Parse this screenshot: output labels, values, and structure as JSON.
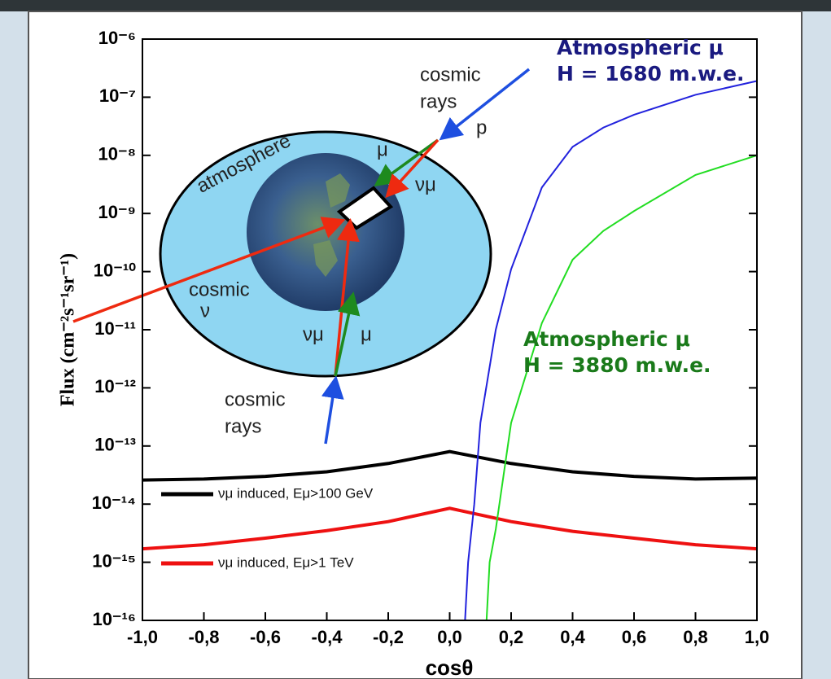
{
  "chart_data": {
    "type": "line",
    "xlabel": "cosθ",
    "ylabel": "Flux (cm⁻²s⁻¹sr⁻¹)",
    "xlim": [
      -1,
      1
    ],
    "ylim": [
      1e-16,
      1e-06
    ],
    "log_y": true,
    "xticks": [
      {
        "value": -1,
        "label": "-1,0"
      },
      {
        "value": -0.8,
        "label": "-0,8"
      },
      {
        "value": -0.6,
        "label": "-0,6"
      },
      {
        "value": -0.4,
        "label": "-0,4"
      },
      {
        "value": -0.2,
        "label": "-0,2"
      },
      {
        "value": 0,
        "label": "0,0"
      },
      {
        "value": 0.2,
        "label": "0,2"
      },
      {
        "value": 0.4,
        "label": "0,4"
      },
      {
        "value": 0.6,
        "label": "0,6"
      },
      {
        "value": 0.8,
        "label": "0,8"
      },
      {
        "value": 1,
        "label": "1,0"
      }
    ],
    "yticks": [
      {
        "value": 1e-06,
        "label": "10⁻⁶"
      },
      {
        "value": 1e-07,
        "label": "10⁻⁷"
      },
      {
        "value": 1e-08,
        "label": "10⁻⁸"
      },
      {
        "value": 1e-09,
        "label": "10⁻⁹"
      },
      {
        "value": 1e-10,
        "label": "10⁻¹⁰"
      },
      {
        "value": 1e-11,
        "label": "10⁻¹¹"
      },
      {
        "value": 1e-12,
        "label": "10⁻¹²"
      },
      {
        "value": 1e-13,
        "label": "10⁻¹³"
      },
      {
        "value": 1e-14,
        "label": "10⁻¹⁴"
      },
      {
        "value": 1e-15,
        "label": "10⁻¹⁵"
      },
      {
        "value": 1e-16,
        "label": "10⁻¹⁶"
      }
    ],
    "series": [
      {
        "name": "νμ induced, Eμ>100 GeV",
        "color": "#000000",
        "x": [
          -1,
          -0.8,
          -0.6,
          -0.4,
          -0.2,
          0,
          0.2,
          0.4,
          0.6,
          0.8,
          1
        ],
        "values": [
          2.6e-14,
          2.7e-14,
          3e-14,
          3.6e-14,
          5e-14,
          8e-14,
          5e-14,
          3.6e-14,
          3e-14,
          2.7e-14,
          2.8e-14
        ]
      },
      {
        "name": "νμ induced, Eμ>1 TeV",
        "color": "#ee1111",
        "x": [
          -1,
          -0.8,
          -0.6,
          -0.4,
          -0.2,
          0,
          0.2,
          0.4,
          0.6,
          0.8,
          1
        ],
        "values": [
          1.7e-15,
          2e-15,
          2.6e-15,
          3.5e-15,
          5e-15,
          8.5e-15,
          5e-15,
          3.4e-15,
          2.6e-15,
          2e-15,
          1.7e-15
        ]
      },
      {
        "color": "#2222dd",
        "x": [
          0.05,
          0.06,
          0.08,
          0.1,
          0.15,
          0.2,
          0.3,
          0.4,
          0.5,
          0.6,
          0.8,
          1
        ],
        "values": [
          1e-16,
          1e-15,
          1e-14,
          2.5e-13,
          1e-11,
          1.1e-10,
          2.8e-09,
          1.4e-08,
          3e-08,
          5e-08,
          1.1e-07,
          1.9e-07
        ]
      },
      {
        "color": "#22dd22",
        "x": [
          0.12,
          0.13,
          0.15,
          0.2,
          0.3,
          0.4,
          0.5,
          0.6,
          0.8,
          1
        ],
        "values": [
          1e-16,
          1e-15,
          3.7e-15,
          2.5e-13,
          1.3e-11,
          1.6e-10,
          5e-10,
          1.1e-09,
          4.6e-09,
          1e-08
        ]
      }
    ],
    "annotations": [
      {
        "lines": [
          "Atmospheric μ",
          "H = 1680 m.w.e."
        ],
        "color": "#1a1a80"
      },
      {
        "lines": [
          "Atmospheric μ",
          "H = 3880 m.w.e."
        ],
        "color": "#1a7a1a"
      }
    ],
    "inset": {
      "atmosphere": "atmosphere",
      "cosmic_rays_top": [
        "cosmic",
        "rays"
      ],
      "proton": "p",
      "mu_top": "μ",
      "numu_top": "νμ",
      "cosmic_nu": [
        "cosmic",
        "ν"
      ],
      "numu_bottom": "νμ",
      "mu_bottom": "μ",
      "cosmic_rays_bottom": [
        "cosmic",
        "rays"
      ]
    }
  }
}
